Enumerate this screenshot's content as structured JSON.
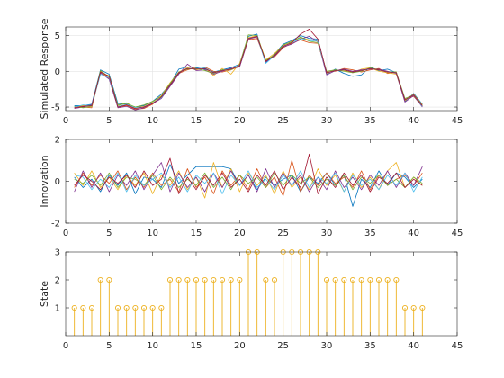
{
  "chart_data": [
    {
      "type": "line",
      "title": "",
      "xlabel": "",
      "ylabel": "Simulated Response",
      "xlim": [
        0,
        45
      ],
      "ylim": [
        -5.5,
        6.2
      ],
      "xticks": [
        0,
        5,
        10,
        15,
        20,
        25,
        30,
        35,
        40,
        45
      ],
      "yticks": [
        -5,
        0,
        5
      ],
      "grid": true,
      "x": [
        1,
        2,
        3,
        4,
        5,
        6,
        7,
        8,
        9,
        10,
        11,
        12,
        13,
        14,
        15,
        16,
        17,
        18,
        19,
        20,
        21,
        22,
        23,
        24,
        25,
        26,
        27,
        28,
        29,
        30,
        31,
        32,
        33,
        34,
        35,
        36,
        37,
        38,
        39,
        40,
        41
      ],
      "base": [
        -5,
        -4.9,
        -4.8,
        -0.1,
        -0.9,
        -4.9,
        -4.7,
        -5.2,
        -5,
        -4.4,
        -3.6,
        -1.9,
        -0.2,
        0.4,
        0.3,
        0.4,
        -0.2,
        0.1,
        0.3,
        0.8,
        4.6,
        4.9,
        1.4,
        2.2,
        3.5,
        4,
        4.6,
        4.3,
        4.2,
        -0.2,
        0.1,
        0.2,
        -0.1,
        0.1,
        0.4,
        0.2,
        -0.1,
        -0.2,
        -4,
        -3.3,
        -4.8
      ],
      "series": [
        {
          "color": "#0072BD",
          "values": [
            -4.8,
            -4.8,
            -4.6,
            0.2,
            -0.4,
            -4.5,
            -4.6,
            -5.0,
            -4.8,
            -4.2,
            -3.2,
            -1.8,
            0.3,
            0.6,
            0.5,
            0.3,
            -0.1,
            0.2,
            0.5,
            1.0,
            4.9,
            5.2,
            1.2,
            2.4,
            3.8,
            4.3,
            5.0,
            4.6,
            4.5,
            -0.4,
            0.3,
            -0.3,
            -0.7,
            -0.5,
            0.6,
            0.1,
            0.3,
            -0.2,
            -4.2,
            -3.1,
            -4.6
          ]
        },
        {
          "color": "#D95319",
          "values": [
            -5.0,
            -5.0,
            -5.1,
            0.0,
            -1.0,
            -5.0,
            -4.8,
            -5.3,
            -5.2,
            -4.6,
            -3.6,
            -2.0,
            -0.3,
            0.2,
            0.6,
            0.6,
            0.0,
            -0.1,
            0.2,
            0.7,
            4.4,
            4.6,
            1.5,
            2.0,
            3.3,
            3.9,
            4.4,
            4.0,
            3.9,
            -0.1,
            0.0,
            0.4,
            0.2,
            -0.1,
            0.2,
            0.4,
            -0.3,
            -0.1,
            -3.9,
            -3.5,
            -4.9
          ]
        },
        {
          "color": "#EDB120",
          "values": [
            -5.1,
            -4.8,
            -4.9,
            -0.3,
            -0.6,
            -4.8,
            -4.4,
            -5.1,
            -4.9,
            -4.3,
            -3.4,
            -1.6,
            -0.1,
            0.5,
            0.2,
            0.5,
            -0.6,
            0.4,
            -0.4,
            1.1,
            4.7,
            5.0,
            1.6,
            2.5,
            3.6,
            4.2,
            4.7,
            4.4,
            4.3,
            -0.3,
            0.2,
            0.1,
            -0.2,
            0.3,
            0.5,
            0.0,
            -0.2,
            -0.4,
            -4.1,
            -3.2,
            -4.7
          ]
        },
        {
          "color": "#7E2F8E",
          "values": [
            -5.2,
            -5.0,
            -4.7,
            -0.2,
            -1.1,
            -5.1,
            -4.9,
            -5.4,
            -5.1,
            -4.5,
            -3.8,
            -2.1,
            -0.4,
            1.0,
            0.1,
            0.2,
            -0.4,
            0.0,
            0.4,
            0.6,
            4.5,
            4.8,
            1.3,
            2.1,
            3.4,
            3.8,
            4.5,
            4.9,
            4.1,
            -0.5,
            0.1,
            0.3,
            0.0,
            0.2,
            0.3,
            0.3,
            0.0,
            -0.3,
            -4.3,
            -3.4,
            -5.0
          ]
        },
        {
          "color": "#77AC30",
          "values": [
            -4.9,
            -5.1,
            -4.9,
            0.1,
            -0.8,
            -4.7,
            -4.5,
            -5.0,
            -4.7,
            -4.2,
            -3.5,
            -1.7,
            -0.1,
            0.3,
            0.4,
            0.1,
            -0.3,
            0.2,
            0.2,
            0.9,
            5.1,
            5.0,
            1.5,
            2.3,
            3.7,
            4.1,
            4.8,
            4.2,
            4.0,
            0.0,
            0.2,
            0.0,
            -0.2,
            0.0,
            0.5,
            0.2,
            -0.1,
            -0.1,
            -3.8,
            -3.3,
            -4.8
          ]
        },
        {
          "color": "#4DBEEE",
          "values": [
            -5.0,
            -4.7,
            -4.8,
            -0.4,
            -0.9,
            -4.9,
            -4.6,
            -5.1,
            -5.0,
            -4.4,
            -3.7,
            -1.9,
            -0.2,
            0.4,
            0.3,
            0.5,
            -0.2,
            0.1,
            0.3,
            0.8,
            4.6,
            4.9,
            1.1,
            2.2,
            3.5,
            4.0,
            4.6,
            4.3,
            4.2,
            -0.2,
            0.1,
            0.2,
            -0.1,
            0.1,
            0.4,
            0.2,
            -0.1,
            -0.2,
            -4.0,
            -3.3,
            -4.9
          ]
        },
        {
          "color": "#A2142F",
          "values": [
            -5.1,
            -4.9,
            -4.8,
            -0.1,
            -0.7,
            -5.0,
            -4.7,
            -5.2,
            -5.0,
            -4.5,
            -3.6,
            -1.9,
            -0.2,
            0.4,
            0.3,
            0.4,
            -0.2,
            0.1,
            0.3,
            0.8,
            4.6,
            4.9,
            1.4,
            2.2,
            3.5,
            4.0,
            5.2,
            5.9,
            4.5,
            -0.2,
            0.1,
            0.2,
            -0.1,
            0.1,
            0.4,
            0.2,
            -0.1,
            -0.2,
            -4.0,
            -3.3,
            -4.8
          ]
        }
      ]
    },
    {
      "type": "line",
      "title": "",
      "xlabel": "",
      "ylabel": "Innovation",
      "xlim": [
        0,
        45
      ],
      "ylim": [
        -2,
        2
      ],
      "xticks": [
        0,
        5,
        10,
        15,
        20,
        25,
        30,
        35,
        40,
        45
      ],
      "yticks": [
        -2,
        0,
        2
      ],
      "grid": false,
      "x": [
        1,
        2,
        3,
        4,
        5,
        6,
        7,
        8,
        9,
        10,
        11,
        12,
        13,
        14,
        15,
        16,
        17,
        18,
        19,
        20,
        21,
        22,
        23,
        24,
        25,
        26,
        27,
        28,
        29,
        30,
        31,
        32,
        33,
        34,
        35,
        36,
        37,
        38,
        39,
        40,
        41
      ],
      "series": [
        {
          "color": "#0072BD",
          "values": [
            0.2,
            -0.3,
            0.1,
            -0.5,
            0.3,
            -0.2,
            0.4,
            -0.6,
            0.2,
            0.1,
            -0.3,
            0.8,
            -0.1,
            0.3,
            0.7,
            0.7,
            0.7,
            0.7,
            0.6,
            -0.2,
            0.3,
            -0.4,
            0.2,
            -0.2,
            0.1,
            0.3,
            -0.5,
            0.2,
            -0.1,
            0.4,
            -0.2,
            0.3,
            -1.2,
            0.1,
            -0.3,
            0.5,
            -0.2,
            0.4,
            0.2,
            -0.3,
            0.1
          ]
        },
        {
          "color": "#D95319",
          "values": [
            -0.3,
            0.4,
            -0.2,
            0.3,
            -0.1,
            0.5,
            -0.4,
            0.2,
            -0.3,
            0.4,
            -0.2,
            0.1,
            -0.5,
            0.6,
            -0.3,
            0.2,
            -0.6,
            0.5,
            -0.2,
            0.3,
            -0.4,
            0.6,
            -0.3,
            0.2,
            -0.7,
            1.0,
            -0.5,
            0.3,
            -0.2,
            0.4,
            -0.1,
            0.2,
            -0.3,
            0.5,
            -0.4,
            0.3,
            -0.2,
            0.1,
            0.3,
            -0.2,
            0.4
          ]
        },
        {
          "color": "#EDB120",
          "values": [
            0.4,
            -0.2,
            0.5,
            -0.3,
            0.2,
            -0.4,
            0.3,
            -0.2,
            0.4,
            -0.6,
            0.3,
            -0.2,
            0.5,
            -0.4,
            0.2,
            -0.8,
            0.9,
            -0.3,
            0.6,
            -0.5,
            0.4,
            -0.2,
            0.3,
            -0.6,
            0.5,
            -0.3,
            0.2,
            -0.4,
            0.6,
            -0.2,
            0.3,
            -0.5,
            0.4,
            -0.3,
            0.2,
            -0.4,
            0.5,
            0.9,
            -0.3,
            0.2,
            -0.2
          ]
        },
        {
          "color": "#7E2F8E",
          "values": [
            -0.5,
            0.5,
            -0.3,
            0.4,
            -0.5,
            0.3,
            -0.2,
            0.5,
            -0.4,
            0.3,
            0.9,
            -0.5,
            0.4,
            -0.3,
            0.2,
            -0.5,
            0.4,
            -0.3,
            0.5,
            -0.2,
            0.3,
            -0.5,
            0.6,
            -0.3,
            0.4,
            -0.2,
            0.3,
            -0.5,
            0.2,
            -0.4,
            0.5,
            -0.3,
            0.2,
            -0.4,
            0.3,
            -0.2,
            0.5,
            -0.3,
            0.4,
            -0.2,
            0.7
          ]
        },
        {
          "color": "#77AC30",
          "values": [
            0.1,
            -0.1,
            0.3,
            -0.2,
            0.4,
            -0.3,
            0.2,
            0.1,
            -0.2,
            0.3,
            -0.4,
            0.2,
            -0.3,
            0.1,
            -0.2,
            0.4,
            -0.3,
            0.2,
            -0.4,
            0.3,
            -0.1,
            0.2,
            -0.3,
            0.4,
            -0.2,
            0.3,
            -0.1,
            0.2,
            -0.3,
            0.1,
            -0.2,
            0.3,
            -0.4,
            0.2,
            -0.1,
            0.3,
            -0.2,
            0.1,
            -0.3,
            0.2,
            -0.1
          ]
        },
        {
          "color": "#4DBEEE",
          "values": [
            0.3,
            0.2,
            -0.4,
            0.1,
            -0.3,
            0.4,
            -0.5,
            0.3,
            -0.2,
            0.1,
            0.4,
            -0.3,
            0.2,
            -0.5,
            0.3,
            -0.1,
            0.4,
            -0.6,
            0.3,
            -0.2,
            0.5,
            -0.3,
            0.1,
            -0.4,
            0.3,
            -0.2,
            0.5,
            -0.3,
            0.2,
            -0.1,
            0.4,
            -0.5,
            0.3,
            -0.2,
            0.1,
            -0.4,
            0.3,
            -0.2,
            0.4,
            -0.5,
            0.2
          ]
        },
        {
          "color": "#A2142F",
          "values": [
            -0.2,
            0.3,
            0.0,
            -0.4,
            0.2,
            -0.1,
            0.3,
            -0.3,
            0.5,
            -0.2,
            0.1,
            1.1,
            -0.6,
            0.2,
            -0.4,
            0.3,
            -0.2,
            0.4,
            -0.3,
            0.1,
            -0.5,
            0.3,
            -0.2,
            0.5,
            -0.4,
            0.2,
            -0.3,
            1.3,
            -0.6,
            0.2,
            -0.3,
            0.4,
            -0.2,
            0.3,
            -0.5,
            0.2,
            -0.1,
            0.4,
            -0.3,
            0.1,
            -0.2
          ]
        }
      ]
    },
    {
      "type": "stem",
      "title": "",
      "xlabel": "",
      "ylabel": "State",
      "xlim": [
        0,
        45
      ],
      "ylim": [
        0,
        3
      ],
      "xticks": [
        0,
        5,
        10,
        15,
        20,
        25,
        30,
        35,
        40,
        45
      ],
      "yticks": [
        1,
        2,
        3
      ],
      "grid": false,
      "color": "#EDB120",
      "x": [
        1,
        2,
        3,
        4,
        5,
        6,
        7,
        8,
        9,
        10,
        11,
        12,
        13,
        14,
        15,
        16,
        17,
        18,
        19,
        20,
        21,
        22,
        23,
        24,
        25,
        26,
        27,
        28,
        29,
        30,
        31,
        32,
        33,
        34,
        35,
        36,
        37,
        38,
        39,
        40,
        41
      ],
      "values": [
        1,
        1,
        1,
        2,
        2,
        1,
        1,
        1,
        1,
        1,
        1,
        2,
        2,
        2,
        2,
        2,
        2,
        2,
        2,
        2,
        3,
        3,
        2,
        2,
        3,
        3,
        3,
        3,
        3,
        2,
        2,
        2,
        2,
        2,
        2,
        2,
        2,
        2,
        1,
        1,
        1
      ]
    }
  ]
}
